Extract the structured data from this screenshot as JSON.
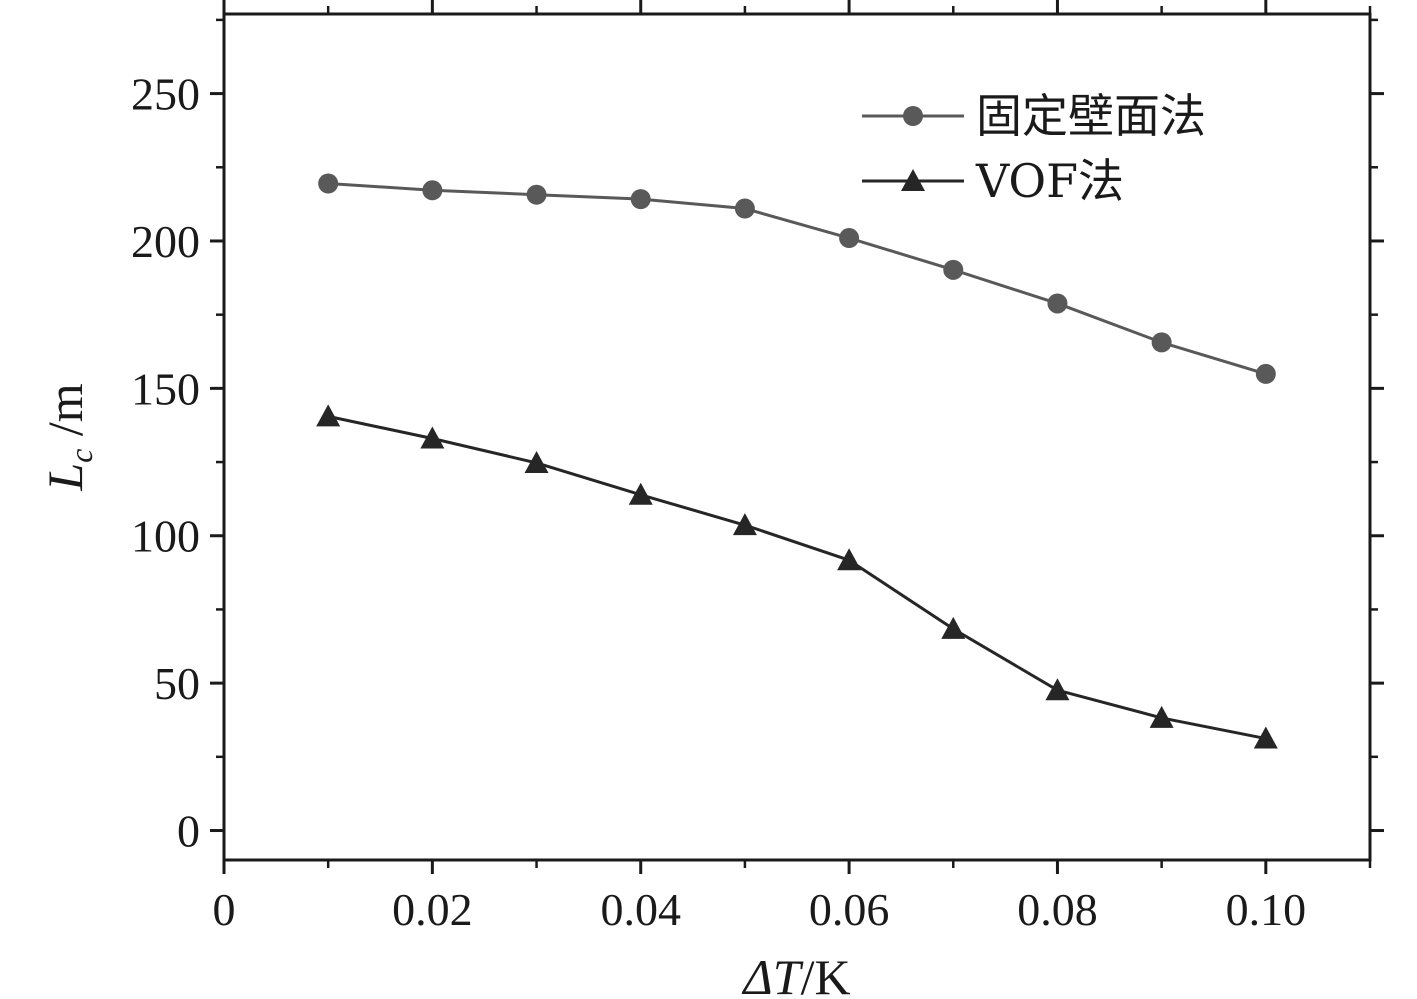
{
  "chart_data": {
    "type": "line",
    "title": "",
    "xlabel": {
      "italic": "ΔT",
      "unit": "/K"
    },
    "ylabel": {
      "italic": "L",
      "subscript": "c",
      "unit": " /m"
    },
    "xlim": [
      0,
      0.11
    ],
    "ylim": [
      -10,
      277
    ],
    "x_ticks": [
      0,
      0.02,
      0.04,
      0.06,
      0.08,
      0.1
    ],
    "x_tick_labels": [
      "0",
      "0.02",
      "0.04",
      "0.06",
      "0.08",
      "0.10"
    ],
    "y_ticks": [
      0,
      50,
      100,
      150,
      200,
      250
    ],
    "y_tick_labels": [
      "0",
      "50",
      "100",
      "150",
      "200",
      "250"
    ],
    "x": [
      0.01,
      0.02,
      0.03,
      0.04,
      0.05,
      0.06,
      0.07,
      0.08,
      0.09,
      0.1
    ],
    "series": [
      {
        "name": "固定壁面法",
        "marker": "circle",
        "color": "#595959",
        "values": [
          219.5,
          217.2,
          215.7,
          214.2,
          211.0,
          201.0,
          190.2,
          178.8,
          165.6,
          154.9
        ]
      },
      {
        "name": "VOF法",
        "marker": "triangle",
        "color": "#262626",
        "values": [
          140.5,
          133.0,
          124.7,
          113.9,
          103.6,
          91.7,
          68.4,
          47.6,
          38.2,
          31.2
        ]
      }
    ],
    "legend_position": "top-right",
    "grid": false
  }
}
